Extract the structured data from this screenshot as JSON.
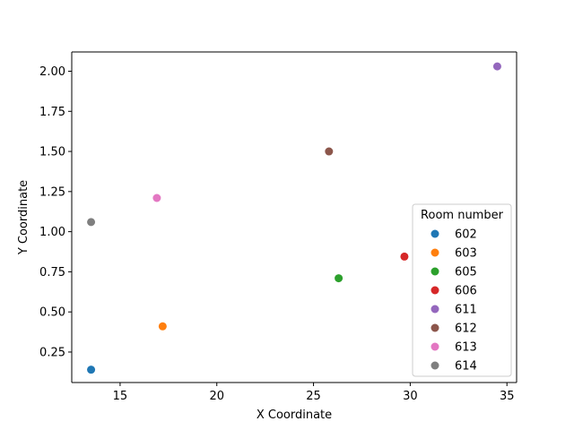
{
  "chart_data": {
    "type": "scatter",
    "title": "",
    "xlabel": "X Coordinate",
    "ylabel": "Y Coordinate",
    "xlim": [
      12.5,
      35.5
    ],
    "ylim": [
      0.06,
      2.12
    ],
    "xticks": [
      15,
      20,
      25,
      30,
      35
    ],
    "yticks": [
      0.25,
      0.5,
      0.75,
      1.0,
      1.25,
      1.5,
      1.75,
      2.0
    ],
    "xtick_labels": [
      "15",
      "20",
      "25",
      "30",
      "35"
    ],
    "ytick_labels": [
      "0.25",
      "0.50",
      "0.75",
      "1.00",
      "1.25",
      "1.50",
      "1.75",
      "2.00"
    ],
    "grid": false,
    "legend": {
      "title": "Room number",
      "placement": "lower-right"
    },
    "series": [
      {
        "name": "602",
        "color": "#1f77b4",
        "x": [
          13.5
        ],
        "y": [
          0.14
        ]
      },
      {
        "name": "603",
        "color": "#ff7f0e",
        "x": [
          17.2
        ],
        "y": [
          0.41
        ]
      },
      {
        "name": "605",
        "color": "#2ca02c",
        "x": [
          26.3
        ],
        "y": [
          0.71
        ]
      },
      {
        "name": "606",
        "color": "#d62728",
        "x": [
          29.7
        ],
        "y": [
          0.845
        ]
      },
      {
        "name": "611",
        "color": "#9467bd",
        "x": [
          34.5
        ],
        "y": [
          2.03
        ]
      },
      {
        "name": "612",
        "color": "#8c564b",
        "x": [
          25.8
        ],
        "y": [
          1.5
        ]
      },
      {
        "name": "613",
        "color": "#e377c2",
        "x": [
          16.9
        ],
        "y": [
          1.21
        ]
      },
      {
        "name": "614",
        "color": "#7f7f7f",
        "x": [
          13.5
        ],
        "y": [
          1.06
        ]
      }
    ]
  }
}
